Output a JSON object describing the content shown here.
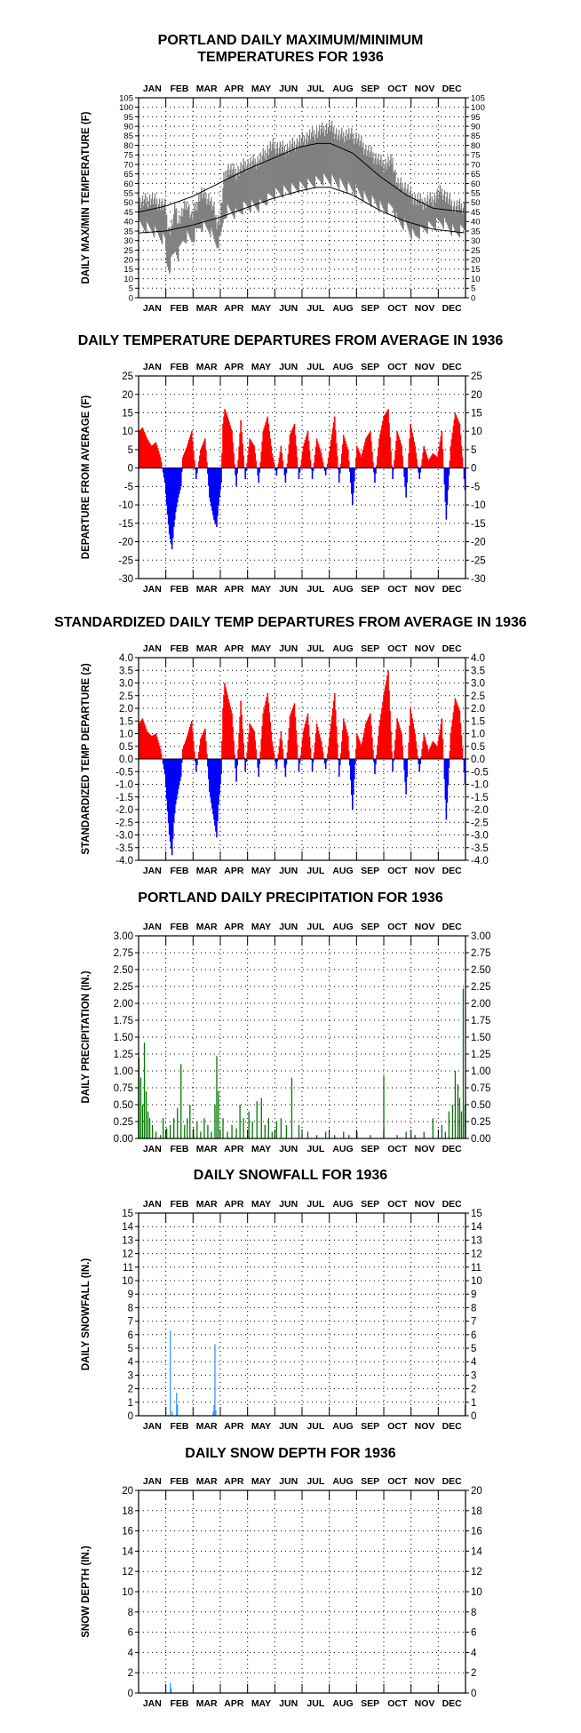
{
  "chart_data": [
    {
      "type": "line",
      "title": "PORTLAND DAILY MAXIMUM/MINIMUM\nTEMPERATURES FOR 1936",
      "ylabel": "DAILY MAX/MIN TEMPERATURE (F)",
      "months": [
        "JAN",
        "FEB",
        "MAR",
        "APR",
        "MAY",
        "JUN",
        "JUL",
        "AUG",
        "SEP",
        "OCT",
        "NOV",
        "DEC"
      ],
      "ylim": [
        0,
        105
      ],
      "yticks": [
        0,
        5,
        10,
        15,
        20,
        25,
        30,
        35,
        40,
        45,
        50,
        55,
        60,
        65,
        70,
        75,
        80,
        85,
        90,
        95,
        100,
        105
      ],
      "grid": true,
      "series": [
        {
          "kind": "observed-range",
          "color": "#808080",
          "x": [
            1,
            15,
            30,
            32,
            35,
            38,
            42,
            45,
            50,
            55,
            60,
            70,
            80,
            85,
            88,
            92,
            96,
            100,
            110,
            120,
            135,
            150,
            165,
            180,
            195,
            205,
            215,
            225,
            235,
            245,
            255,
            265,
            275,
            285,
            290,
            300,
            305,
            310,
            320,
            330,
            340,
            350,
            355,
            366
          ],
          "max": [
            50,
            52,
            48,
            42,
            35,
            38,
            48,
            40,
            45,
            50,
            42,
            55,
            52,
            46,
            40,
            42,
            62,
            68,
            66,
            70,
            72,
            80,
            78,
            82,
            86,
            88,
            90,
            85,
            86,
            84,
            78,
            74,
            70,
            72,
            60,
            58,
            54,
            52,
            50,
            52,
            56,
            50,
            48,
            48
          ],
          "min": [
            38,
            36,
            30,
            18,
            15,
            20,
            25,
            22,
            30,
            32,
            30,
            38,
            36,
            30,
            28,
            30,
            42,
            46,
            44,
            48,
            48,
            54,
            56,
            58,
            60,
            62,
            62,
            60,
            58,
            56,
            52,
            50,
            46,
            48,
            40,
            38,
            34,
            32,
            36,
            38,
            40,
            36,
            34,
            36
          ]
        },
        {
          "kind": "normal",
          "color": "#000000",
          "x": [
            1,
            30,
            60,
            90,
            120,
            150,
            180,
            200,
            215,
            240,
            270,
            300,
            330,
            366
          ],
          "max": [
            45,
            48,
            53,
            60,
            67,
            73,
            79,
            81,
            81,
            76,
            64,
            54,
            47,
            45
          ],
          "min": [
            34,
            35,
            38,
            42,
            47,
            52,
            56,
            58,
            58,
            54,
            46,
            40,
            36,
            34
          ]
        }
      ]
    },
    {
      "type": "bar",
      "title": "DAILY TEMPERATURE DEPARTURES FROM AVERAGE IN 1936",
      "ylabel": "DEPARTURE FROM AVERAGE (F)",
      "months": [
        "JAN",
        "FEB",
        "MAR",
        "APR",
        "MAY",
        "JUN",
        "JUL",
        "AUG",
        "SEP",
        "OCT",
        "NOV",
        "DEC"
      ],
      "ylim": [
        -30,
        25
      ],
      "yticks": [
        -30,
        -25,
        -20,
        -15,
        -10,
        -5,
        0,
        5,
        10,
        15,
        20,
        25
      ],
      "grid": true,
      "positive_color": "#ff0000",
      "negative_color": "#0000ff",
      "x": [
        1,
        5,
        10,
        15,
        20,
        25,
        30,
        32,
        35,
        38,
        40,
        42,
        45,
        48,
        50,
        55,
        60,
        65,
        70,
        75,
        80,
        85,
        88,
        90,
        93,
        95,
        97,
        100,
        105,
        110,
        115,
        120,
        125,
        130,
        135,
        140,
        145,
        150,
        155,
        160,
        165,
        170,
        175,
        180,
        185,
        190,
        195,
        200,
        205,
        210,
        215,
        220,
        225,
        230,
        235,
        240,
        245,
        250,
        255,
        260,
        265,
        270,
        275,
        280,
        285,
        290,
        295,
        300,
        305,
        310,
        315,
        320,
        325,
        330,
        335,
        340,
        345,
        350,
        355,
        360,
        366
      ],
      "values": [
        10,
        11,
        8,
        6,
        7,
        3,
        -4,
        -10,
        -18,
        -22,
        -16,
        -12,
        -8,
        -5,
        3,
        6,
        10,
        -3,
        5,
        8,
        -8,
        -14,
        -16,
        -10,
        -4,
        12,
        16,
        14,
        10,
        -5,
        13,
        -3,
        8,
        6,
        -4,
        10,
        14,
        4,
        -2,
        6,
        -4,
        9,
        12,
        -3,
        6,
        10,
        -3,
        8,
        4,
        -2,
        6,
        14,
        -4,
        9,
        5,
        -10,
        6,
        3,
        8,
        10,
        -4,
        8,
        14,
        16,
        -3,
        10,
        6,
        -8,
        12,
        6,
        -3,
        6,
        2,
        4,
        3,
        10,
        -14,
        6,
        15,
        12,
        -6
      ]
    },
    {
      "type": "bar",
      "title": "STANDARDIZED DAILY TEMP DEPARTURES FROM AVERAGE IN 1936",
      "ylabel": "STANDARDIZED TEMP DEPARTURE (z)",
      "months": [
        "JAN",
        "FEB",
        "MAR",
        "APR",
        "MAY",
        "JUN",
        "JUL",
        "AUG",
        "SEP",
        "OCT",
        "NOV",
        "DEC"
      ],
      "ylim": [
        -4,
        4
      ],
      "yticks": [
        -4.0,
        -3.5,
        -3.0,
        -2.5,
        -2.0,
        -1.5,
        -1.0,
        -0.5,
        0.0,
        0.5,
        1.0,
        1.5,
        2.0,
        2.5,
        3.0,
        3.5,
        4.0
      ],
      "grid": true,
      "positive_color": "#ff0000",
      "negative_color": "#0000ff",
      "x": [
        1,
        5,
        10,
        15,
        20,
        25,
        30,
        32,
        35,
        38,
        40,
        42,
        45,
        48,
        50,
        55,
        60,
        65,
        70,
        75,
        80,
        85,
        88,
        90,
        93,
        95,
        97,
        100,
        105,
        110,
        115,
        120,
        125,
        130,
        135,
        140,
        145,
        150,
        155,
        160,
        165,
        170,
        175,
        180,
        185,
        190,
        195,
        200,
        205,
        210,
        215,
        220,
        225,
        230,
        235,
        240,
        245,
        250,
        255,
        260,
        265,
        270,
        275,
        280,
        285,
        290,
        295,
        300,
        305,
        310,
        315,
        320,
        325,
        330,
        335,
        340,
        345,
        350,
        355,
        360,
        366
      ],
      "values": [
        1.4,
        1.6,
        1.1,
        0.9,
        1.0,
        0.4,
        -0.6,
        -1.6,
        -3.0,
        -3.8,
        -2.5,
        -1.8,
        -1.2,
        -0.7,
        0.4,
        0.9,
        1.5,
        -0.5,
        0.8,
        1.2,
        -1.3,
        -2.4,
        -3.1,
        -1.8,
        -0.6,
        2.0,
        3.0,
        2.5,
        1.8,
        -0.9,
        2.3,
        -0.5,
        1.4,
        1.1,
        -0.7,
        1.8,
        2.6,
        0.7,
        -0.4,
        1.1,
        -0.7,
        1.7,
        2.2,
        -0.5,
        1.1,
        1.8,
        -0.5,
        1.4,
        0.7,
        -0.4,
        1.1,
        2.6,
        -0.7,
        1.6,
        0.9,
        -2.0,
        1.0,
        0.5,
        1.4,
        1.8,
        -0.6,
        1.3,
        2.5,
        3.5,
        -0.5,
        1.6,
        1.0,
        -1.4,
        2.0,
        1.0,
        -0.5,
        1.0,
        0.3,
        0.7,
        0.5,
        1.6,
        -2.4,
        1.0,
        2.4,
        1.9,
        -1.0
      ]
    },
    {
      "type": "bar",
      "title": "PORTLAND DAILY PRECIPITATION FOR 1936",
      "ylabel": "DAILY PRECIPITATION (IN.)",
      "months": [
        "JAN",
        "FEB",
        "MAR",
        "APR",
        "MAY",
        "JUN",
        "JUL",
        "AUG",
        "SEP",
        "OCT",
        "NOV",
        "DEC"
      ],
      "ylim": [
        0,
        3.0
      ],
      "yticks": [
        0.0,
        0.25,
        0.5,
        0.75,
        1.0,
        1.25,
        1.5,
        1.75,
        2.0,
        2.25,
        2.5,
        2.75,
        3.0
      ],
      "grid": true,
      "color": "#007700",
      "x": [
        1,
        3,
        5,
        7,
        9,
        11,
        13,
        16,
        20,
        25,
        28,
        32,
        36,
        40,
        44,
        48,
        52,
        55,
        58,
        62,
        66,
        70,
        74,
        78,
        82,
        86,
        88,
        90,
        95,
        100,
        105,
        110,
        114,
        118,
        124,
        128,
        133,
        138,
        142,
        146,
        150,
        155,
        160,
        166,
        172,
        180,
        190,
        200,
        210,
        220,
        230,
        236,
        245,
        260,
        275,
        290,
        300,
        310,
        320,
        330,
        340,
        344,
        348,
        352,
        355,
        358,
        360,
        362,
        364,
        366
      ],
      "values": [
        1.2,
        0.9,
        0.5,
        1.42,
        0.7,
        0.4,
        0.3,
        0.2,
        0.1,
        0.05,
        0.3,
        0.15,
        0.2,
        0.3,
        0.45,
        1.1,
        0.2,
        0.3,
        0.5,
        0.15,
        0.25,
        0.1,
        0.3,
        0.2,
        0.1,
        0.5,
        1.22,
        0.7,
        0.3,
        0.1,
        0.2,
        0.15,
        0.5,
        0.3,
        0.4,
        0.25,
        0.55,
        0.6,
        0.2,
        0.3,
        0.1,
        0.25,
        0.3,
        0.2,
        0.9,
        0.2,
        0.1,
        0.05,
        0.1,
        0.05,
        0.1,
        0.05,
        0.1,
        0.05,
        0.93,
        0.05,
        0.1,
        0.05,
        0.1,
        0.3,
        0.2,
        0.1,
        0.4,
        0.5,
        1.0,
        0.8,
        0.6,
        0.4,
        2.22,
        0.5
      ]
    },
    {
      "type": "bar",
      "title": "DAILY SNOWFALL FOR 1936",
      "ylabel": "DAILY SNOWFALL (IN.)",
      "months": [
        "JAN",
        "FEB",
        "MAR",
        "APR",
        "MAY",
        "JUN",
        "JUL",
        "AUG",
        "SEP",
        "OCT",
        "NOV",
        "DEC"
      ],
      "ylim": [
        0,
        15
      ],
      "yticks": [
        0,
        1,
        2,
        3,
        4,
        5,
        6,
        7,
        8,
        9,
        10,
        11,
        12,
        13,
        14,
        15
      ],
      "grid": true,
      "color": "#3399ff",
      "x": [
        36,
        38,
        43,
        44,
        84,
        85,
        86,
        87,
        366
      ],
      "values": [
        6.3,
        0.3,
        1.7,
        0.8,
        0.3,
        0.8,
        5.3,
        0.4,
        0.8
      ]
    },
    {
      "type": "bar",
      "title": "DAILY SNOW DEPTH FOR 1936",
      "ylabel": "SNOW DEPTH (IN.)",
      "months": [
        "JAN",
        "FEB",
        "MAR",
        "APR",
        "MAY",
        "JUN",
        "JUL",
        "AUG",
        "SEP",
        "OCT",
        "NOV",
        "DEC"
      ],
      "ylim": [
        0,
        20
      ],
      "yticks": [
        0,
        2,
        4,
        6,
        8,
        10,
        12,
        14,
        16,
        18,
        20
      ],
      "grid": true,
      "color": "#3399ff",
      "x": [
        36,
        37
      ],
      "values": [
        1.0,
        0.5
      ]
    }
  ]
}
